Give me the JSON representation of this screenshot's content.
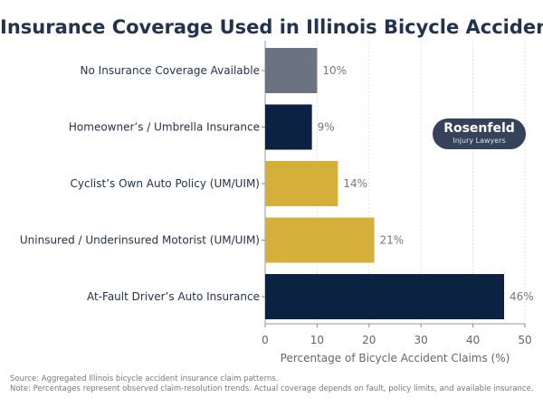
{
  "chart_data": {
    "type": "bar",
    "orientation": "horizontal",
    "title": "Insurance Coverage Used in Illinois Bicycle Accidents",
    "xlabel": "Percentage of Bicycle Accident Claims (%)",
    "ylabel": "",
    "xlim": [
      0,
      50
    ],
    "xticks": [
      0,
      10,
      20,
      30,
      40,
      50
    ],
    "grid": "vertical",
    "categories": [
      "No Insurance Coverage Available",
      "Homeowner’s / Umbrella Insurance",
      "Cyclist’s Own Auto Policy (UM/UIM)",
      "Uninsured / Underinsured Motorist (UM/UIM)",
      "At-Fault Driver’s Auto Insurance"
    ],
    "values": [
      10,
      9,
      14,
      21,
      46
    ],
    "data_labels": [
      "10%",
      "9%",
      "14%",
      "21%",
      "46%"
    ],
    "colors": [
      "#6b7280",
      "#0c2242",
      "#d4b03a",
      "#d4b03a",
      "#0c2242"
    ]
  },
  "logo": {
    "line1": "Rosenfeld",
    "line2": "Injury Lawyers"
  },
  "footer": {
    "source": "Source: Aggregated Illinois bicycle accident insurance claim patterns.",
    "note": "Note: Percentages represent observed claim-resolution trends. Actual coverage depends on fault, policy limits, and available insurance."
  }
}
